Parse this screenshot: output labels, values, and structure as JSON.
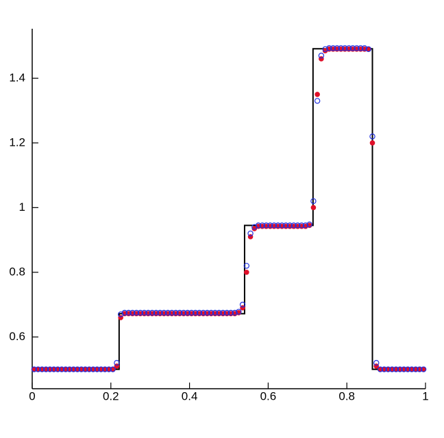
{
  "chart_data": {
    "type": "line",
    "xlim": [
      0,
      1
    ],
    "ylim": [
      0.44,
      1.553
    ],
    "xticks": [
      0,
      0.2,
      0.4,
      0.6,
      0.8,
      1
    ],
    "yticks": [
      0.6,
      0.8,
      1,
      1.2,
      1.4
    ],
    "x": [
      0.005,
      0.015,
      0.025,
      0.035,
      0.045,
      0.055,
      0.065,
      0.075,
      0.085,
      0.095,
      0.105,
      0.115,
      0.125,
      0.135,
      0.145,
      0.155,
      0.165,
      0.175,
      0.185,
      0.195,
      0.205,
      0.215,
      0.225,
      0.235,
      0.245,
      0.255,
      0.265,
      0.275,
      0.285,
      0.295,
      0.305,
      0.315,
      0.325,
      0.335,
      0.345,
      0.355,
      0.365,
      0.375,
      0.385,
      0.395,
      0.405,
      0.415,
      0.425,
      0.435,
      0.445,
      0.455,
      0.465,
      0.475,
      0.485,
      0.495,
      0.505,
      0.515,
      0.525,
      0.535,
      0.545,
      0.555,
      0.565,
      0.575,
      0.585,
      0.595,
      0.605,
      0.615,
      0.625,
      0.635,
      0.645,
      0.655,
      0.665,
      0.675,
      0.685,
      0.695,
      0.705,
      0.715,
      0.725,
      0.735,
      0.745,
      0.755,
      0.765,
      0.775,
      0.785,
      0.795,
      0.805,
      0.815,
      0.825,
      0.835,
      0.845,
      0.855,
      0.865,
      0.875,
      0.885,
      0.895,
      0.905,
      0.915,
      0.925,
      0.935,
      0.945,
      0.955,
      0.965,
      0.975,
      0.985,
      0.995
    ],
    "series": [
      {
        "mode": "line",
        "color": "#000000",
        "x": [
          0,
          0.221,
          0.221,
          0.54,
          0.54,
          0.714,
          0.714,
          0.865,
          0.865,
          1
        ],
        "values": [
          0.5,
          0.5,
          0.672,
          0.672,
          0.945,
          0.945,
          1.491,
          1.491,
          0.5,
          0.5
        ]
      },
      {
        "mode": "filled-markers",
        "color": "#e0102a",
        "values": [
          0.5,
          0.5,
          0.5,
          0.5,
          0.5,
          0.5,
          0.5,
          0.5,
          0.5,
          0.5,
          0.5,
          0.5,
          0.5,
          0.5,
          0.5,
          0.5,
          0.5,
          0.5,
          0.5,
          0.5,
          0.5,
          0.51,
          0.66,
          0.672,
          0.672,
          0.672,
          0.672,
          0.672,
          0.672,
          0.672,
          0.672,
          0.672,
          0.672,
          0.672,
          0.672,
          0.672,
          0.672,
          0.672,
          0.672,
          0.672,
          0.672,
          0.672,
          0.672,
          0.672,
          0.672,
          0.672,
          0.672,
          0.672,
          0.672,
          0.672,
          0.672,
          0.672,
          0.675,
          0.69,
          0.8,
          0.91,
          0.935,
          0.942,
          0.942,
          0.942,
          0.942,
          0.942,
          0.942,
          0.942,
          0.942,
          0.942,
          0.942,
          0.942,
          0.942,
          0.942,
          0.945,
          1.0,
          1.35,
          1.46,
          1.485,
          1.49,
          1.49,
          1.49,
          1.49,
          1.49,
          1.49,
          1.49,
          1.49,
          1.49,
          1.49,
          1.49,
          1.2,
          0.51,
          0.5,
          0.5,
          0.5,
          0.5,
          0.5,
          0.5,
          0.5,
          0.5,
          0.5,
          0.5,
          0.5,
          0.5
        ]
      },
      {
        "mode": "hollow-markers",
        "color": "#2030e0",
        "values": [
          0.5,
          0.5,
          0.5,
          0.5,
          0.5,
          0.5,
          0.5,
          0.5,
          0.5,
          0.5,
          0.5,
          0.5,
          0.5,
          0.5,
          0.5,
          0.5,
          0.5,
          0.5,
          0.5,
          0.5,
          0.5,
          0.52,
          0.67,
          0.675,
          0.675,
          0.675,
          0.675,
          0.675,
          0.675,
          0.675,
          0.675,
          0.675,
          0.675,
          0.675,
          0.675,
          0.675,
          0.675,
          0.675,
          0.675,
          0.675,
          0.675,
          0.675,
          0.675,
          0.675,
          0.675,
          0.675,
          0.675,
          0.675,
          0.675,
          0.675,
          0.675,
          0.675,
          0.678,
          0.7,
          0.82,
          0.92,
          0.94,
          0.945,
          0.945,
          0.945,
          0.945,
          0.945,
          0.945,
          0.945,
          0.945,
          0.945,
          0.945,
          0.945,
          0.945,
          0.945,
          0.948,
          1.02,
          1.33,
          1.47,
          1.49,
          1.493,
          1.493,
          1.493,
          1.493,
          1.493,
          1.493,
          1.493,
          1.493,
          1.493,
          1.493,
          1.49,
          1.22,
          0.52,
          0.5,
          0.5,
          0.5,
          0.5,
          0.5,
          0.5,
          0.5,
          0.5,
          0.5,
          0.5,
          0.5,
          0.5
        ]
      }
    ]
  }
}
